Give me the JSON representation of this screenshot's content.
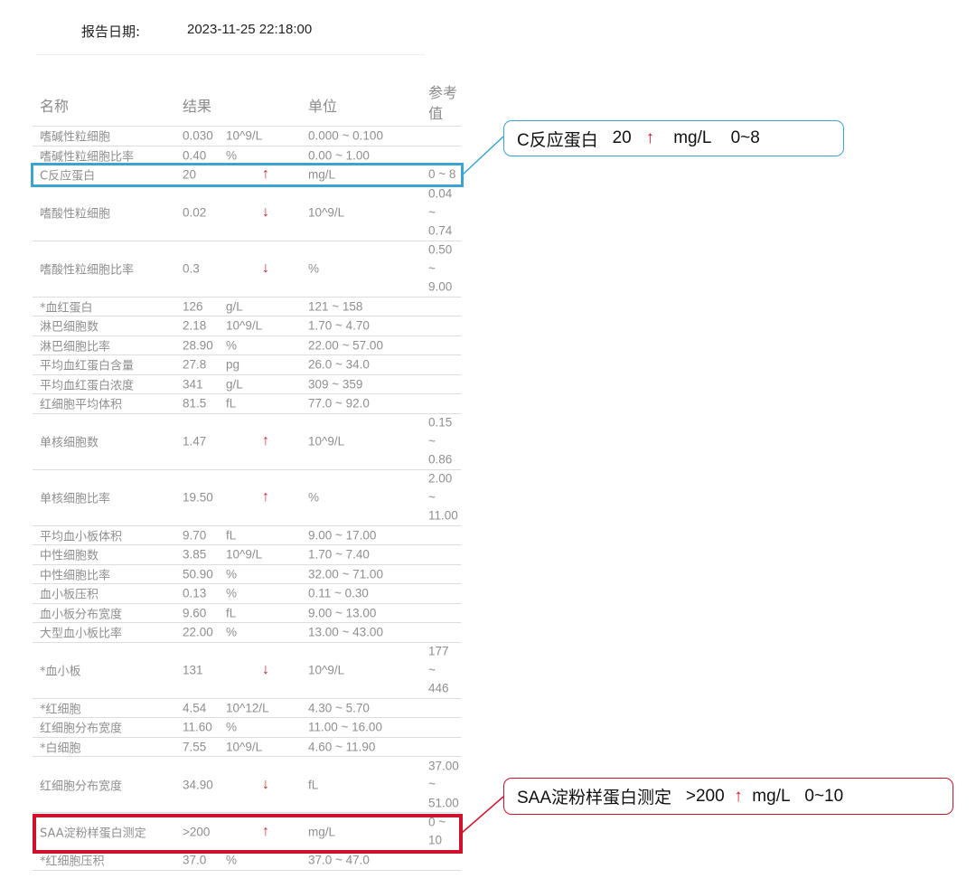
{
  "report": {
    "date_label": "报告日期:",
    "date_value": "2023-11-25 22:18:00"
  },
  "table": {
    "headers": {
      "name": "名称",
      "result": "结果",
      "unit": "单位",
      "ref": "参考\n值"
    },
    "rows": [
      {
        "name": "嗜碱性粒细胞",
        "value": "0.030",
        "unit": "10^9/L",
        "flag": "",
        "range": "0.000 ~ 0.100"
      },
      {
        "name": "嗜碱性粒细胞比率",
        "value": "0.40",
        "unit": "%",
        "flag": "",
        "range": "0.00 ~ 1.00"
      },
      {
        "name": "C反应蛋白",
        "value": "20",
        "unit": "mg/L",
        "flag": "↑",
        "range": "0 ~ 8"
      },
      {
        "name": "嗜酸性粒细胞",
        "value": "0.02",
        "unit": "10^9/L",
        "flag": "↓",
        "range": "0.04\n~\n0.74"
      },
      {
        "name": "嗜酸性粒细胞比率",
        "value": "0.3",
        "unit": "%",
        "flag": "↓",
        "range": "0.50\n~\n9.00"
      },
      {
        "name": "*血红蛋白",
        "value": "126",
        "unit": "g/L",
        "flag": "",
        "range": "121 ~ 158"
      },
      {
        "name": "淋巴细胞数",
        "value": "2.18",
        "unit": "10^9/L",
        "flag": "",
        "range": "1.70 ~ 4.70"
      },
      {
        "name": "淋巴细胞比率",
        "value": "28.90",
        "unit": "%",
        "flag": "",
        "range": "22.00 ~ 57.00"
      },
      {
        "name": "平均血红蛋白含量",
        "value": "27.8",
        "unit": "pg",
        "flag": "",
        "range": "26.0 ~ 34.0"
      },
      {
        "name": "平均血红蛋白浓度",
        "value": "341",
        "unit": "g/L",
        "flag": "",
        "range": "309 ~ 359"
      },
      {
        "name": "红细胞平均体积",
        "value": "81.5",
        "unit": "fL",
        "flag": "",
        "range": "77.0 ~ 92.0"
      },
      {
        "name": "单核细胞数",
        "value": "1.47",
        "unit": "10^9/L",
        "flag": "↑",
        "range": "0.15\n~\n0.86"
      },
      {
        "name": "单核细胞比率",
        "value": "19.50",
        "unit": "%",
        "flag": "↑",
        "range": "2.00\n~\n11.00"
      },
      {
        "name": "平均血小板体积",
        "value": "9.70",
        "unit": "fL",
        "flag": "",
        "range": "9.00 ~ 17.00"
      },
      {
        "name": "中性细胞数",
        "value": "3.85",
        "unit": "10^9/L",
        "flag": "",
        "range": "1.70 ~ 7.40"
      },
      {
        "name": "中性细胞比率",
        "value": "50.90",
        "unit": "%",
        "flag": "",
        "range": "32.00 ~ 71.00"
      },
      {
        "name": "血小板压积",
        "value": "0.13",
        "unit": "%",
        "flag": "",
        "range": "0.11 ~ 0.30"
      },
      {
        "name": "血小板分布宽度",
        "value": "9.60",
        "unit": "fL",
        "flag": "",
        "range": "9.00 ~ 13.00"
      },
      {
        "name": "大型血小板比率",
        "value": "22.00",
        "unit": "%",
        "flag": "",
        "range": "13.00 ~ 43.00"
      },
      {
        "name": "*血小板",
        "value": "131",
        "unit": "10^9/L",
        "flag": "↓",
        "range": "177\n~\n446"
      },
      {
        "name": "*红细胞",
        "value": "4.54",
        "unit": "10^12/L",
        "flag": "",
        "range": "4.30 ~ 5.70"
      },
      {
        "name": "红细胞分布宽度",
        "value": "11.60",
        "unit": "%",
        "flag": "",
        "range": "11.00 ~ 16.00"
      },
      {
        "name": "*白细胞",
        "value": "7.55",
        "unit": "10^9/L",
        "flag": "",
        "range": "4.60 ~ 11.90"
      },
      {
        "name": "红细胞分布宽度",
        "value": "34.90",
        "unit": "fL",
        "flag": "↓",
        "range": "37.00\n~\n51.00"
      },
      {
        "name": "SAA淀粉样蛋白测定",
        "value": ">200",
        "unit": "mg/L",
        "flag": "↑",
        "range": "0 ~\n10"
      },
      {
        "name": "*红细胞压积",
        "value": "37.0",
        "unit": "%",
        "flag": "",
        "range": "37.0 ~ 47.0"
      }
    ]
  },
  "callouts": {
    "crp": {
      "name": "C反应蛋白",
      "value": "20",
      "flag": "↑",
      "unit": "mg/L",
      "range": "0~8",
      "color": "#3aa3cf"
    },
    "saa": {
      "name": "SAA淀粉样蛋白测定",
      "value": ">200",
      "flag": "↑",
      "unit": "mg/L",
      "range": "0~10",
      "color": "#d0112b"
    }
  },
  "colors": {
    "flag": "#c0282f",
    "text": "#8f8f8f"
  }
}
